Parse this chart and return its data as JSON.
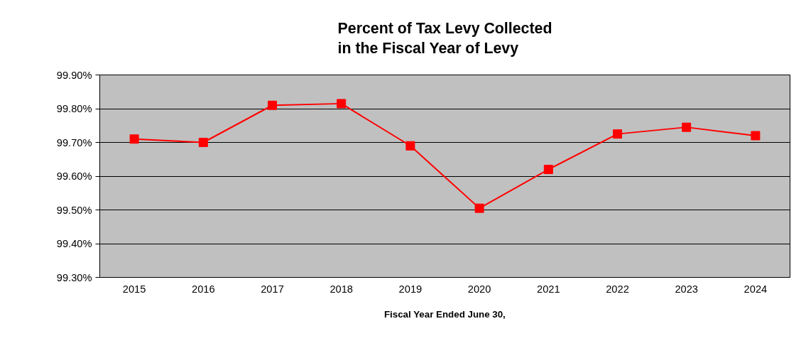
{
  "chart_data": {
    "type": "line",
    "title": "Percent of Tax Levy Collected\nin the Fiscal Year of Levy",
    "xlabel": "Fiscal Year Ended June 30,",
    "categories": [
      "2015",
      "2016",
      "2017",
      "2018",
      "2019",
      "2020",
      "2021",
      "2022",
      "2023",
      "2024"
    ],
    "series": [
      {
        "color": "#ff0000",
        "values": [
          99.71,
          99.7,
          99.81,
          99.815,
          99.69,
          99.505,
          99.62,
          99.725,
          99.745,
          99.72
        ]
      }
    ],
    "ylim": [
      99.3,
      99.9
    ],
    "yticks": [
      {
        "value": 99.3,
        "label": "99.30%"
      },
      {
        "value": 99.4,
        "label": "99.40%"
      },
      {
        "value": 99.5,
        "label": "99.50%"
      },
      {
        "value": 99.6,
        "label": "99.60%"
      },
      {
        "value": 99.7,
        "label": "99.70%"
      },
      {
        "value": 99.8,
        "label": "99.80%"
      },
      {
        "value": 99.9,
        "label": "99.90%"
      }
    ],
    "grid": "y",
    "marker": "square",
    "line_style": "solid"
  }
}
